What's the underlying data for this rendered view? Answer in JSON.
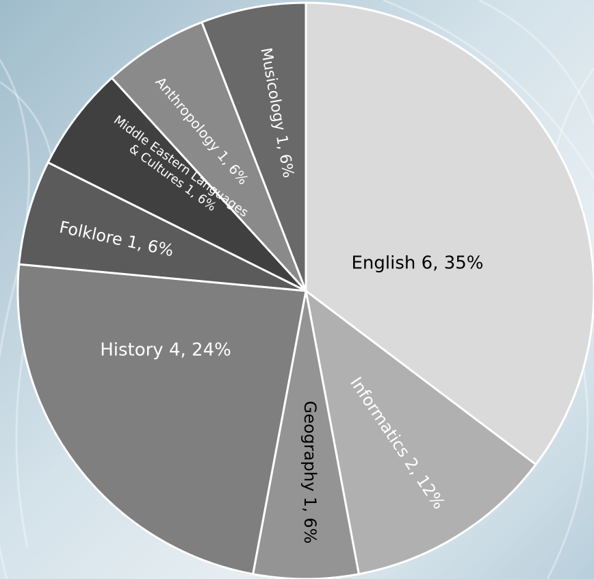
{
  "chart_data": {
    "type": "pie",
    "values": [
      6,
      2,
      1,
      4,
      1,
      1,
      1,
      1
    ],
    "value_labels": [
      [
        "English 6, 35%"
      ],
      [
        "Informatics 2, 12%"
      ],
      [
        "Geography 1, 6%"
      ],
      [
        "History 4, 24%"
      ],
      [
        "Folklore 1, 6%"
      ],
      [
        "Middle Eastern Languages",
        "& Cultures 1, 6%"
      ],
      [
        "Anthropology 1, 6%"
      ],
      [
        "Musicology 1, 6%"
      ]
    ],
    "colors": [
      "#dadada",
      "#b0b0b0",
      "#949494",
      "#7f7f7f",
      "#5b5b5b",
      "#404040",
      "#8a8a8a",
      "#696969"
    ],
    "label_colors": [
      "#000000",
      "#ffffff",
      "#000000",
      "#ffffff",
      "#ffffff",
      "#ffffff",
      "#ffffff",
      "#ffffff"
    ]
  }
}
